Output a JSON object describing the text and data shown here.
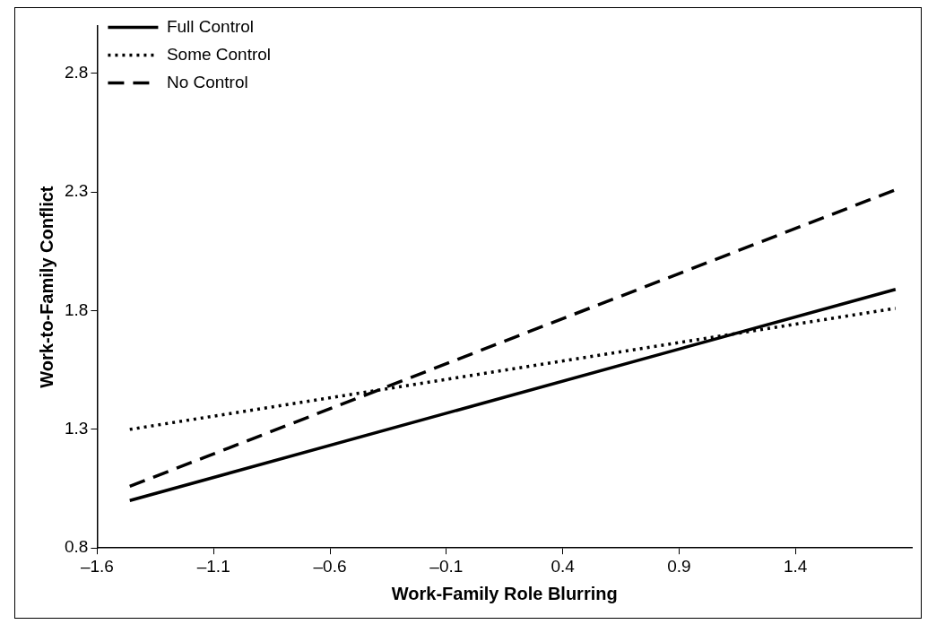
{
  "chart_data": {
    "type": "line",
    "xlabel": "Work-Family Role Blurring",
    "ylabel": "Work-to-Family Conflict",
    "x": [
      -1.46,
      1.83
    ],
    "series": [
      {
        "name": "Full Control",
        "color": "#000000",
        "line_style": "solid",
        "values": [
          1.0,
          1.89
        ]
      },
      {
        "name": "Some Control",
        "color": "#000000",
        "line_style": "dotted",
        "values": [
          1.3,
          1.81
        ]
      },
      {
        "name": "No Control",
        "color": "#000000",
        "line_style": "dashed",
        "values": [
          1.06,
          2.31
        ]
      }
    ],
    "xlim": [
      -1.6,
      1.9
    ],
    "xticks": [
      {
        "value": -1.6,
        "label": "–1.6"
      },
      {
        "value": -1.1,
        "label": "–1.1"
      },
      {
        "value": -0.6,
        "label": "–0.6"
      },
      {
        "value": -0.1,
        "label": "–0.1"
      },
      0.4,
      0.9,
      1.4
    ],
    "ylim": [
      0.8,
      3.0
    ],
    "yticks": [
      0.8,
      1.3,
      1.8,
      2.3,
      2.8
    ],
    "grid": false,
    "legend": "top left",
    "marker": "none"
  }
}
